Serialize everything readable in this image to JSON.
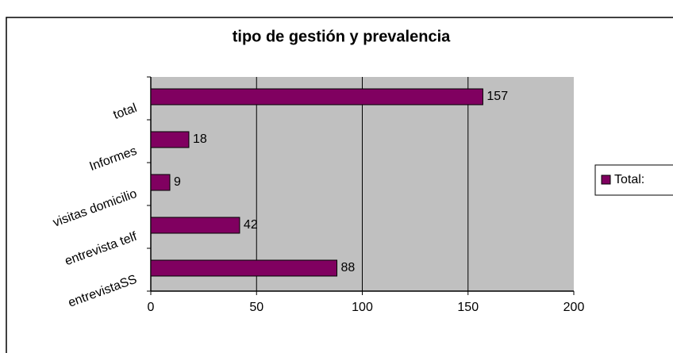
{
  "chart_data": {
    "type": "bar",
    "orientation": "horizontal",
    "title": "tipo de gestión y prevalencia",
    "categories": [
      "total",
      "Informes",
      "visitas domicilio",
      "entrevista telf",
      "entrevistaSS"
    ],
    "series": [
      {
        "name": "Total:",
        "color": "#800060",
        "values": [
          157,
          18,
          9,
          42,
          88
        ]
      }
    ],
    "xlim": [
      0,
      200
    ],
    "xticks": [
      0,
      50,
      100,
      150,
      200
    ],
    "grid": true,
    "legend": "right"
  }
}
